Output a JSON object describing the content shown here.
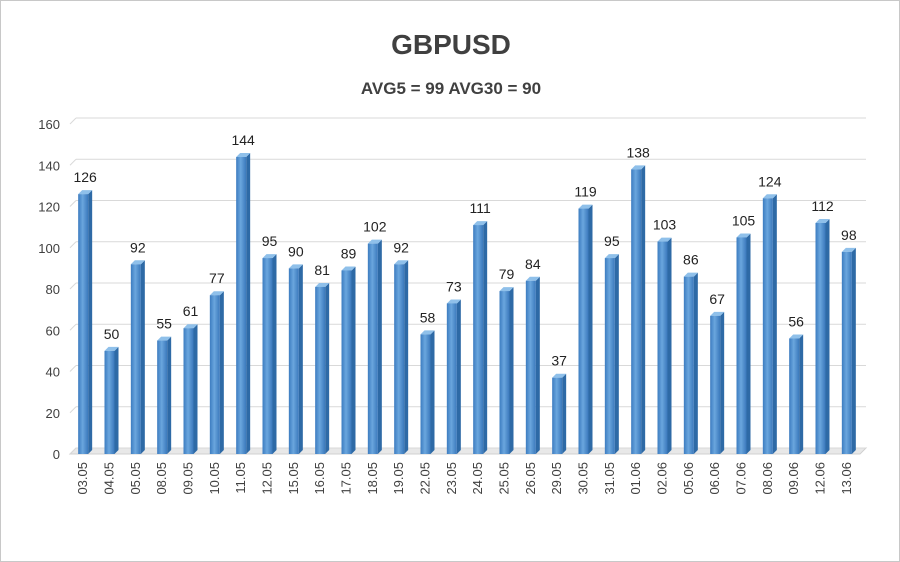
{
  "chart_data": {
    "type": "bar",
    "title": "GBPUSD",
    "subtitle": "AVG5 = 99 AVG30 = 90",
    "categories": [
      "03.05",
      "04.05",
      "05.05",
      "08.05",
      "09.05",
      "10.05",
      "11.05",
      "12.05",
      "15.05",
      "16.05",
      "17.05",
      "18.05",
      "19.05",
      "22.05",
      "23.05",
      "24.05",
      "25.05",
      "26.05",
      "29.05",
      "30.05",
      "31.05",
      "01.06",
      "02.06",
      "05.06",
      "06.06",
      "07.06",
      "08.06",
      "09.06",
      "12.06",
      "13.06"
    ],
    "values": [
      126,
      50,
      92,
      55,
      61,
      77,
      144,
      95,
      90,
      81,
      89,
      102,
      92,
      58,
      73,
      111,
      79,
      84,
      37,
      119,
      95,
      138,
      103,
      86,
      67,
      105,
      124,
      56,
      112,
      98
    ],
    "ylim": [
      0,
      160
    ],
    "yticks": [
      0,
      20,
      40,
      60,
      80,
      100,
      120,
      140,
      160
    ],
    "grid": true,
    "bar_color": "#5b9bd5",
    "bar_dark_color": "#2e6aa6"
  }
}
